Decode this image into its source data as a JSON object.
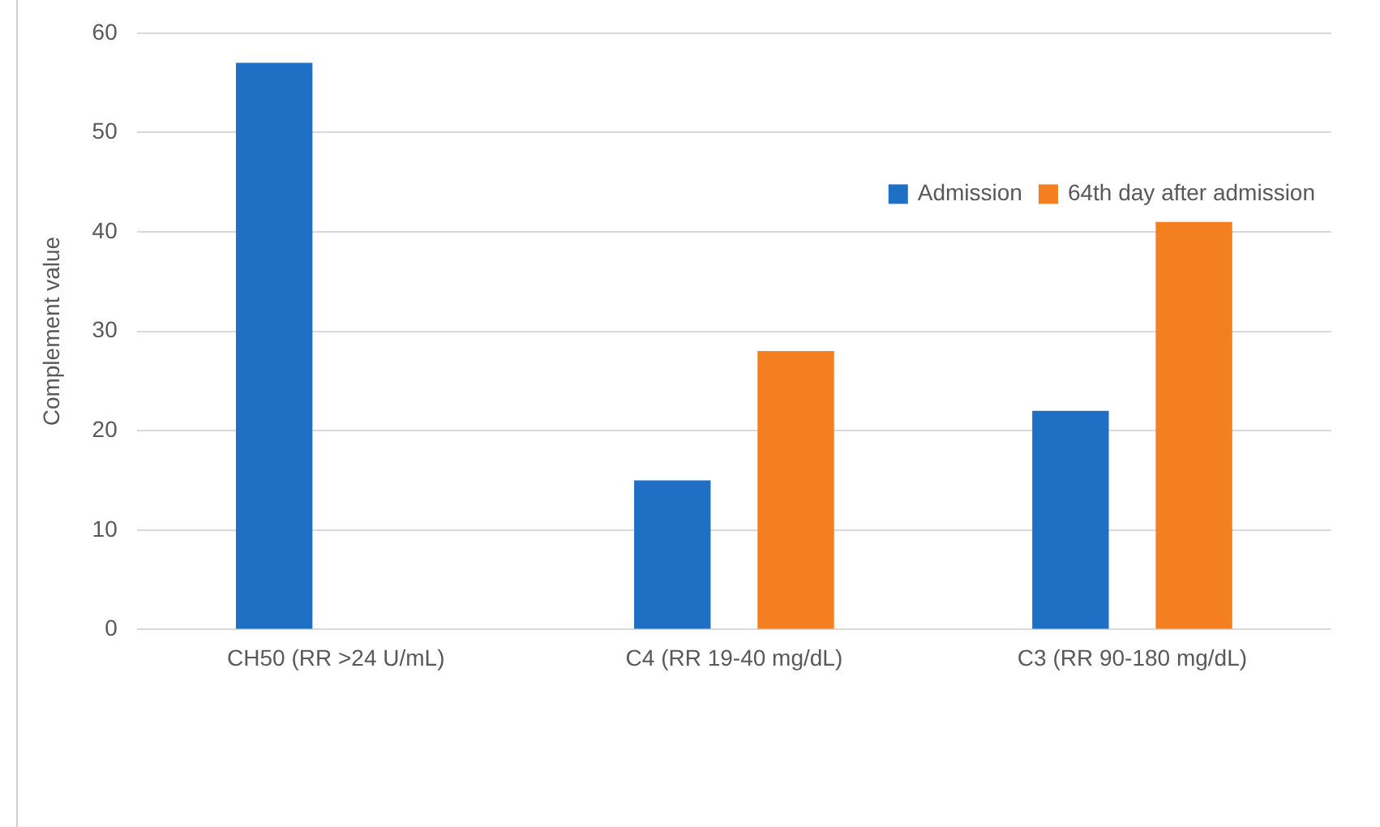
{
  "chart_data": {
    "type": "bar",
    "ylabel": "Complement value",
    "categories": [
      "CH50 (RR >24 U/mL)",
      "C4 (RR 19-40 mg/dL)",
      "C3 (RR 90-180 mg/dL)"
    ],
    "series": [
      {
        "name": "Admission",
        "color": "#1f6fc5",
        "values": [
          57,
          15,
          22
        ]
      },
      {
        "name": "64th day after admission",
        "color": "#f47f20",
        "values": [
          null,
          28,
          41
        ]
      }
    ],
    "ylim": [
      0,
      60
    ],
    "yticks": [
      0,
      10,
      20,
      30,
      40,
      50,
      60
    ],
    "grid": "y",
    "legend": "right"
  }
}
